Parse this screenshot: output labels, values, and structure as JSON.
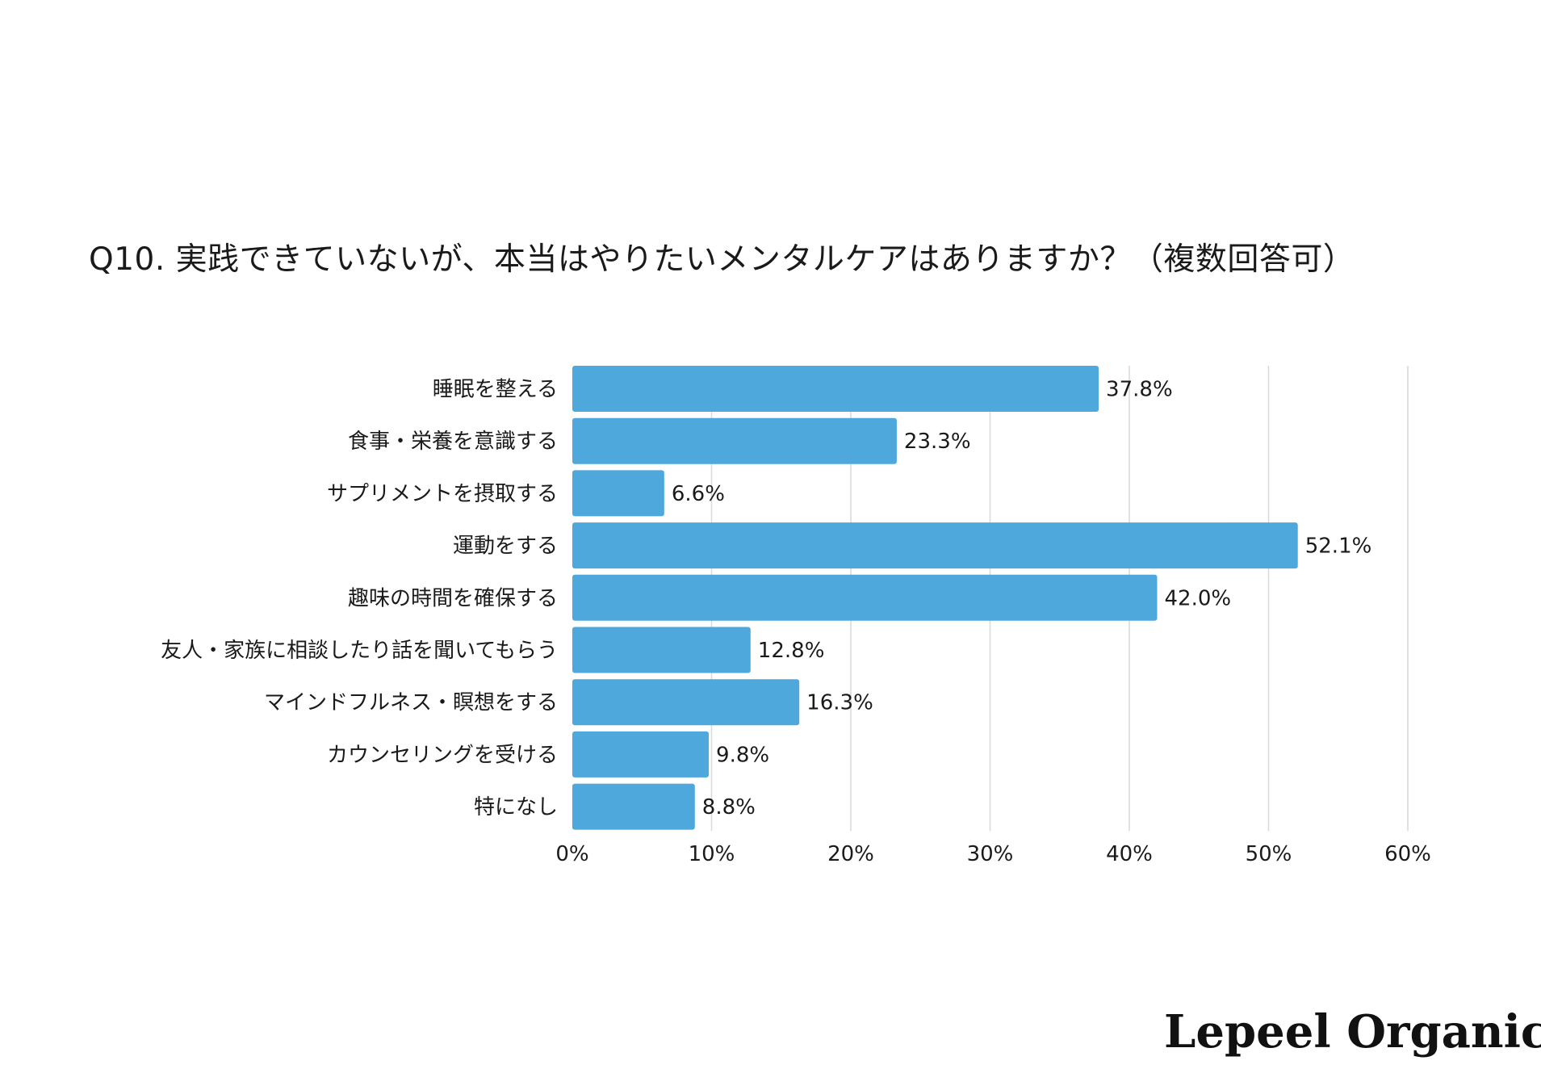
{
  "logo": "Lepeel Organics",
  "colors": {
    "bar": "#4FA8DB",
    "grid": "#d9d9d9",
    "text": "#1a1a1a"
  },
  "chart_data": {
    "type": "bar",
    "orientation": "horizontal",
    "title": "Q10. 実践できていないが、本当はやりたいメンタルケアはありますか？（複数回答可）",
    "categories": [
      "睡眠を整える",
      "食事・栄養を意識する",
      "サプリメントを摂取する",
      "運動をする",
      "趣味の時間を確保する",
      "友人・家族に相談したり話を聞いてもらう",
      "マインドフルネス・瞑想をする",
      "カウンセリングを受ける",
      "特になし"
    ],
    "values": [
      37.8,
      23.3,
      6.6,
      52.1,
      42.0,
      12.8,
      16.3,
      9.8,
      8.8
    ],
    "value_labels": [
      "37.8%",
      "23.3%",
      "6.6%",
      "52.1%",
      "42.0%",
      "12.8%",
      "16.3%",
      "9.8%",
      "8.8%"
    ],
    "xlim": [
      0,
      60
    ],
    "x_ticks": [
      "0%",
      "10%",
      "20%",
      "30%",
      "40%",
      "50%",
      "60%"
    ],
    "grid": true,
    "xlabel": "",
    "ylabel": ""
  }
}
